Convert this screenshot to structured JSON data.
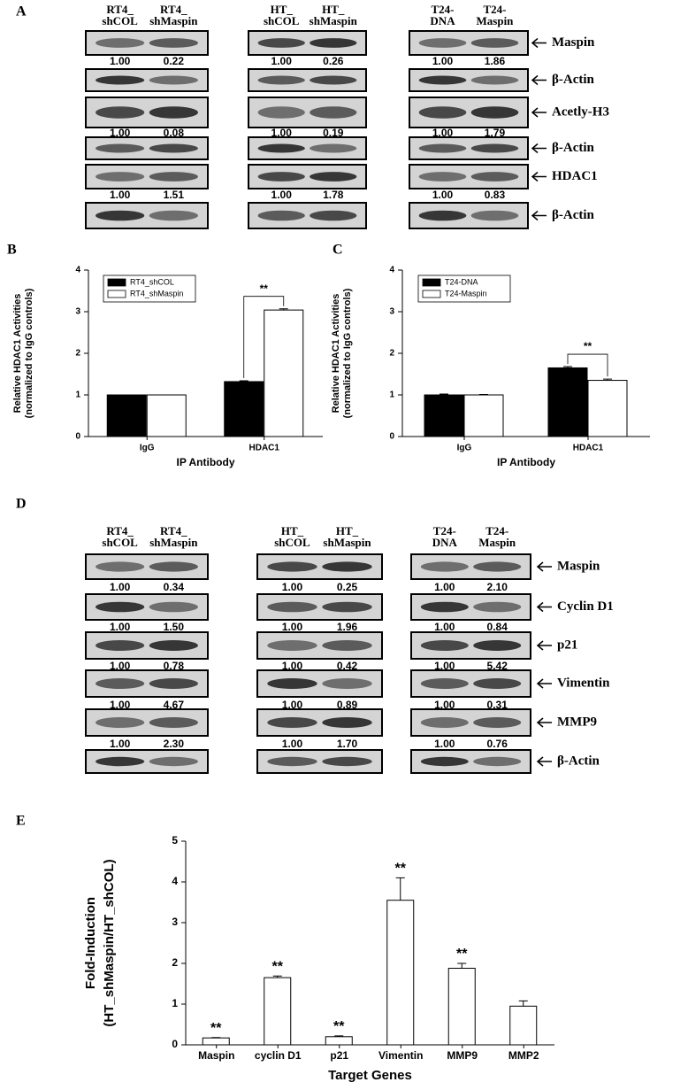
{
  "panel_a": {
    "label": "A",
    "lanes": [
      [
        [
          "RT4_",
          "shCOL"
        ],
        [
          "RT4_",
          "shMaspin"
        ]
      ],
      [
        [
          "HT_",
          "shCOL"
        ],
        [
          "HT_",
          "shMaspin"
        ]
      ],
      [
        [
          "T24-",
          "DNA"
        ],
        [
          "T24-",
          "Maspin"
        ]
      ]
    ],
    "rows": [
      {
        "name": "Maspin",
        "quant": [
          [
            "1.00",
            "0.22"
          ],
          [
            "1.00",
            "0.26"
          ],
          [
            "1.00",
            "1.86"
          ]
        ]
      },
      {
        "name": "β-Actin"
      },
      {
        "name": "Acetly-H3",
        "quant": [
          [
            "1.00",
            "0.08"
          ],
          [
            "1.00",
            "0.19"
          ],
          [
            "1.00",
            "1.79"
          ]
        ]
      },
      {
        "name": "β-Actin"
      },
      {
        "name": "HDAC1",
        "quant": [
          [
            "1.00",
            "1.51"
          ],
          [
            "1.00",
            "1.78"
          ],
          [
            "1.00",
            "0.83"
          ]
        ]
      },
      {
        "name": "β-Actin"
      }
    ]
  },
  "panel_d": {
    "label": "D",
    "lanes": [
      [
        [
          "RT4_",
          "shCOL"
        ],
        [
          "RT4_",
          "shMaspin"
        ]
      ],
      [
        [
          "HT_",
          "shCOL"
        ],
        [
          "HT_",
          "shMaspin"
        ]
      ],
      [
        [
          "T24-",
          "DNA"
        ],
        [
          "T24-",
          "Maspin"
        ]
      ]
    ],
    "rows": [
      {
        "name": "Maspin",
        "quant": [
          [
            "1.00",
            "0.34"
          ],
          [
            "1.00",
            "0.25"
          ],
          [
            "1.00",
            "2.10"
          ]
        ]
      },
      {
        "name": "Cyclin D1",
        "quant": [
          [
            "1.00",
            "1.50"
          ],
          [
            "1.00",
            "1.96"
          ],
          [
            "1.00",
            "0.84"
          ]
        ]
      },
      {
        "name": "p21",
        "quant": [
          [
            "1.00",
            "0.78"
          ],
          [
            "1.00",
            "0.42"
          ],
          [
            "1.00",
            "5.42"
          ]
        ]
      },
      {
        "name": "Vimentin",
        "quant": [
          [
            "1.00",
            "4.67"
          ],
          [
            "1.00",
            "0.89"
          ],
          [
            "1.00",
            "0.31"
          ]
        ]
      },
      {
        "name": "MMP9",
        "quant": [
          [
            "1.00",
            "2.30"
          ],
          [
            "1.00",
            "1.70"
          ],
          [
            "1.00",
            "0.76"
          ]
        ]
      },
      {
        "name": "β-Actin"
      }
    ]
  },
  "chart_data": [
    {
      "panel": "B",
      "type": "bar",
      "ylabel": [
        "Relative HDAC1 Activities",
        "(normalized to IgG controls)"
      ],
      "xlabel": "IP Antibody",
      "categories": [
        "IgG",
        "HDAC1"
      ],
      "series": [
        {
          "name": "RT4_shCOL",
          "color": "#000000",
          "values": [
            1.0,
            1.32
          ],
          "errors": [
            0,
            0.02
          ]
        },
        {
          "name": "RT4_shMaspin",
          "color": "#ffffff",
          "values": [
            1.0,
            3.04
          ],
          "errors": [
            0,
            0.03
          ]
        }
      ],
      "significance": [
        null,
        "**"
      ],
      "ylim": [
        0,
        4
      ],
      "yticks": [
        0,
        1,
        2,
        3,
        4
      ],
      "legend": "upper left"
    },
    {
      "panel": "C",
      "type": "bar",
      "ylabel": [
        "Relative HDAC1 Activities",
        "(normalized to IgG controls)"
      ],
      "xlabel": "IP Antibody",
      "categories": [
        "IgG",
        "HDAC1"
      ],
      "series": [
        {
          "name": "T24-DNA",
          "color": "#000000",
          "values": [
            1.0,
            1.65
          ],
          "errors": [
            0.02,
            0.03
          ]
        },
        {
          "name": "T24-Maspin",
          "color": "#ffffff",
          "values": [
            1.0,
            1.35
          ],
          "errors": [
            0.01,
            0.03
          ]
        }
      ],
      "significance": [
        null,
        "**"
      ],
      "ylim": [
        0,
        4
      ],
      "yticks": [
        0,
        1,
        2,
        3,
        4
      ],
      "legend": "upper left"
    },
    {
      "panel": "E",
      "type": "bar",
      "ylabel": [
        "Fold-Induction",
        "(HT_shMaspin/HT_shCOL)"
      ],
      "xlabel": "Target Genes",
      "categories": [
        "Maspin",
        "cyclin D1",
        "p21",
        "Vimentin",
        "MMP9",
        "MMP2"
      ],
      "series": [
        {
          "color": "#ffffff",
          "values": [
            0.17,
            1.65,
            0.2,
            3.55,
            1.88,
            0.95
          ],
          "errors": [
            0.01,
            0.04,
            0.02,
            0.55,
            0.12,
            0.13
          ]
        }
      ],
      "significance": [
        "**",
        "**",
        "**",
        "**",
        "**",
        null
      ],
      "ylim": [
        0,
        5
      ],
      "yticks": [
        0,
        1,
        2,
        3,
        4,
        5
      ]
    }
  ]
}
